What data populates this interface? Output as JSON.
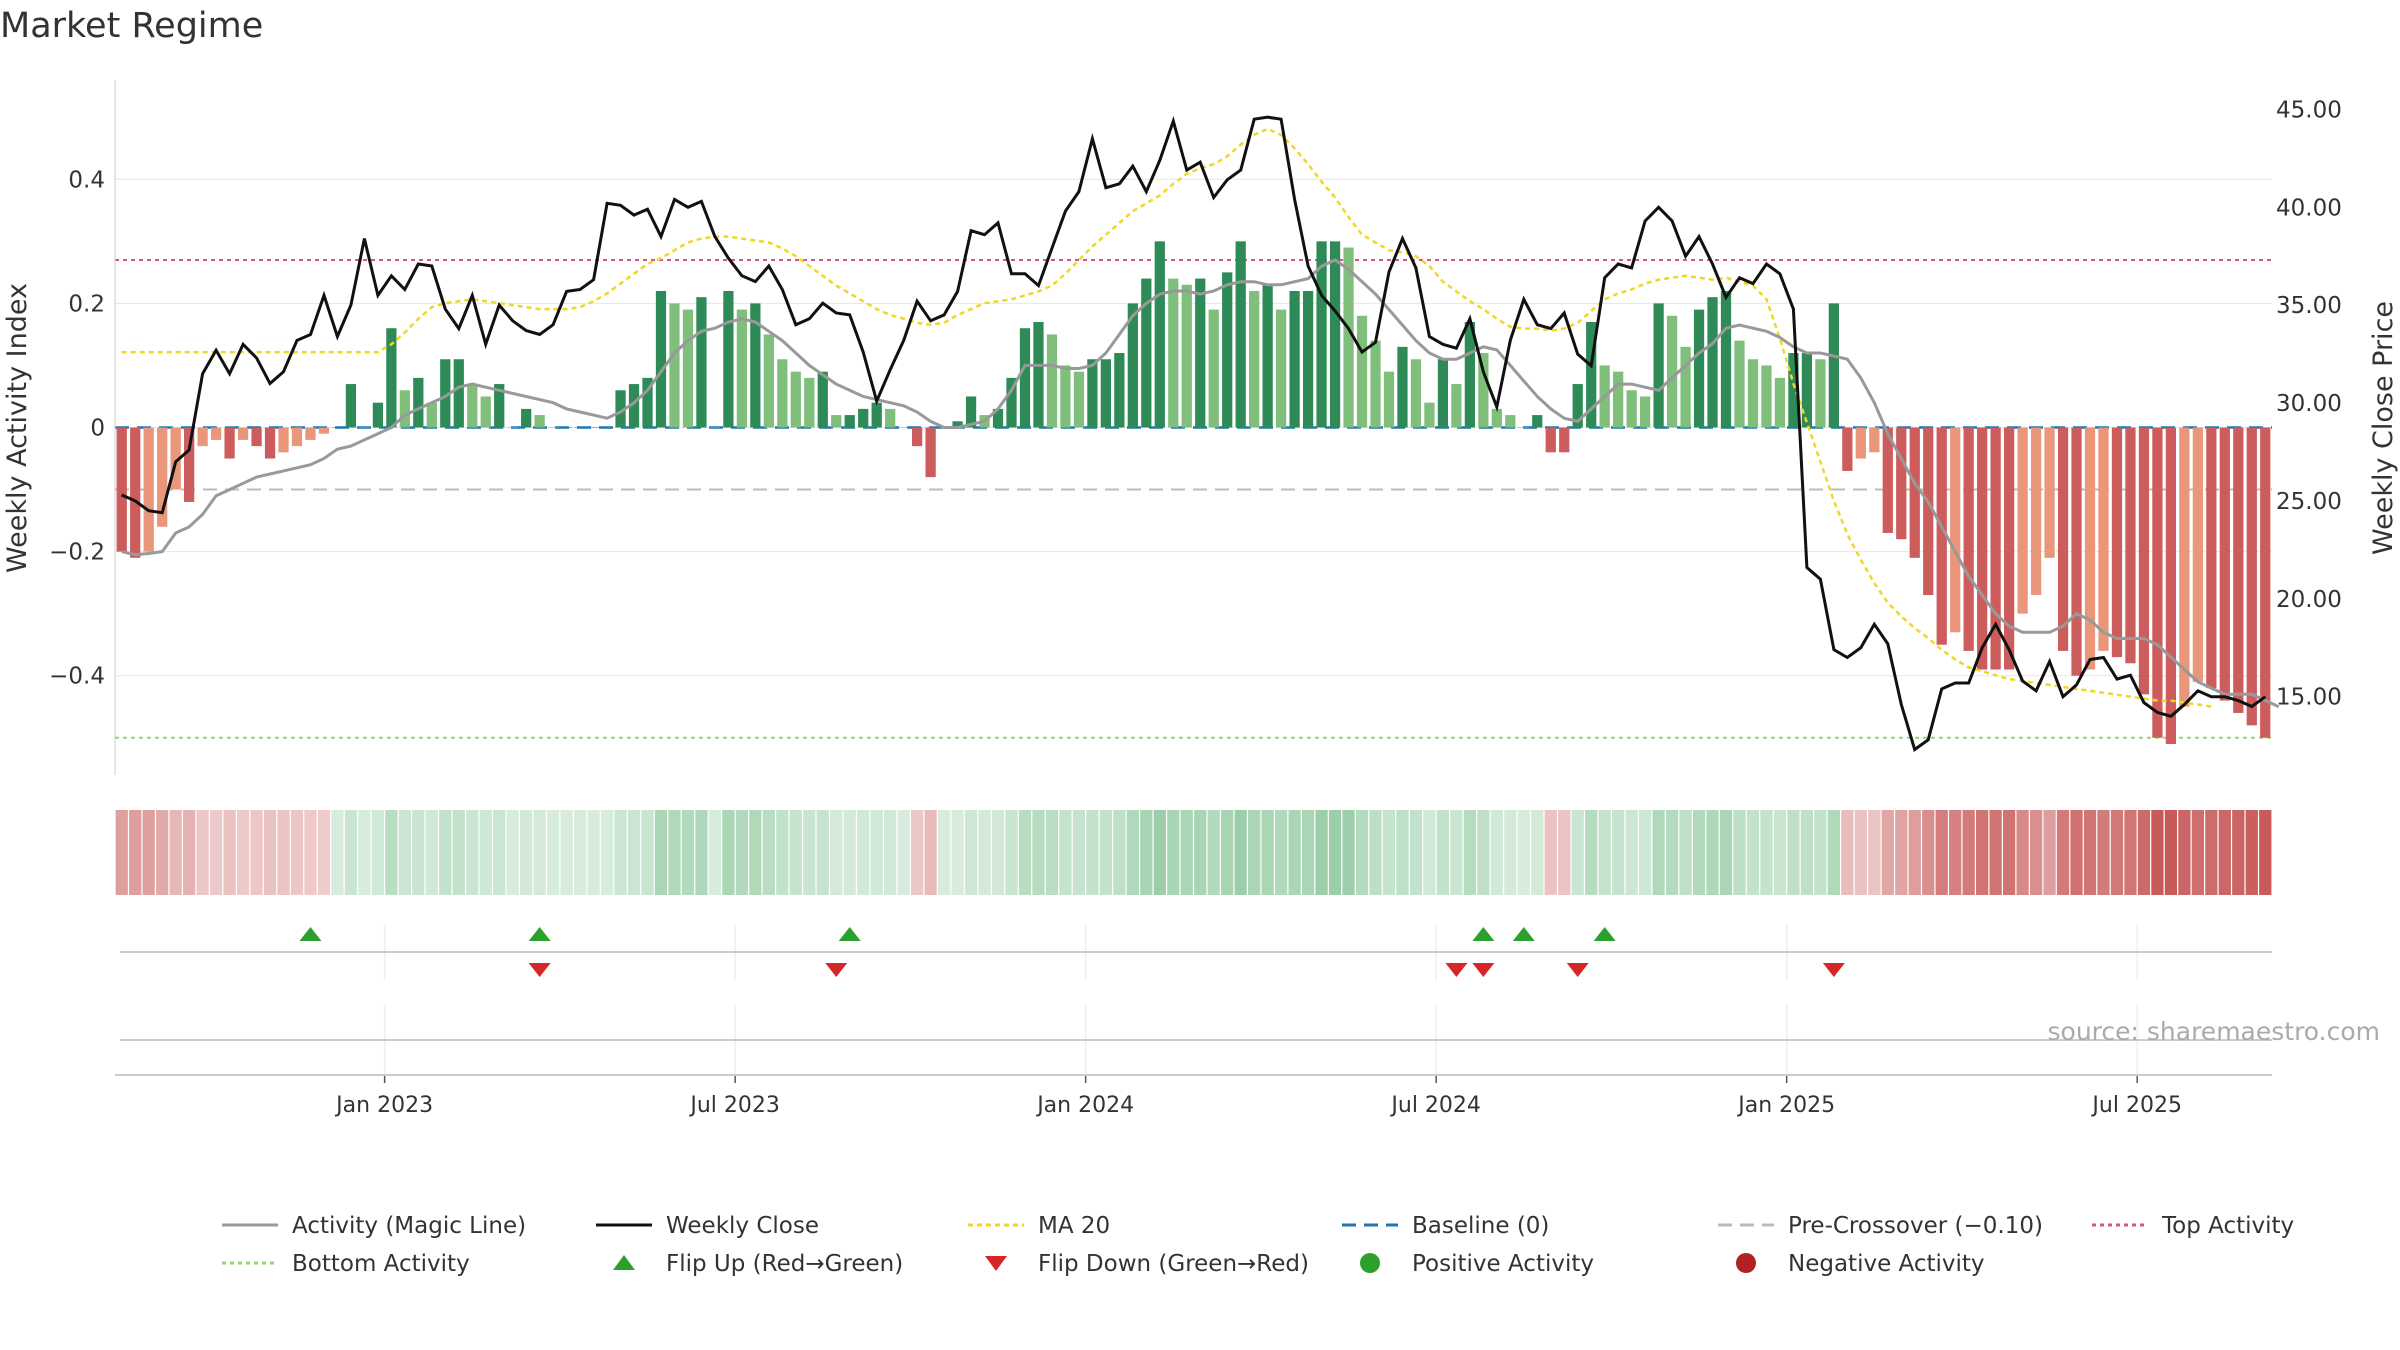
{
  "title": "Market Regime",
  "source": "source: sharemaestro.com",
  "colors": {
    "pos_dark": "#2e8b57",
    "pos_light": "#7fbf7b",
    "neg_dark": "#cd5c5c",
    "neg_light": "#e9967a",
    "activity": "#999999",
    "close": "#111111",
    "ma20": "#f0d722",
    "baseline": "#1f77b4",
    "precross": "#bbbbbb",
    "top": "#d6548a",
    "bottom": "#90d86c",
    "flip_up": "#2ca02c",
    "flip_down": "#d62728",
    "grid": "#e6e6e6"
  },
  "chart_data": {
    "type": "bar",
    "title": "Market Regime",
    "ylabel_left": "Weekly Activity Index",
    "ylabel_right": "Weekly Close Price",
    "left_ticks": [
      "0.4",
      "0.2",
      "0",
      "−0.2",
      "−0.4"
    ],
    "right_ticks": [
      "45.00",
      "40.00",
      "35.00",
      "30.00",
      "25.00",
      "20.00",
      "15.00"
    ],
    "x_ticks": [
      "Jan 2023",
      "Jul 2023",
      "Jan 2024",
      "Jul 2024",
      "Jan 2025",
      "Jul 2025"
    ],
    "ylim_left": [
      -0.56,
      0.56
    ],
    "ylim_right": [
      11.0,
      46.5
    ],
    "top_activity": 0.27,
    "bottom_activity": -0.5,
    "pre_crossover": -0.1,
    "activity_index": [
      -0.2,
      -0.21,
      -0.2,
      -0.16,
      -0.1,
      -0.12,
      -0.03,
      -0.02,
      -0.05,
      -0.02,
      -0.03,
      -0.05,
      -0.04,
      -0.03,
      -0.02,
      -0.01,
      0.0,
      0.07,
      0.0,
      0.04,
      0.16,
      0.06,
      0.08,
      0.04,
      0.11,
      0.11,
      0.07,
      0.05,
      0.07,
      0.0,
      0.03,
      0.02,
      0.0,
      0.0,
      0.0,
      0.0,
      0.0,
      0.06,
      0.07,
      0.08,
      0.22,
      0.2,
      0.19,
      0.21,
      0.0,
      0.22,
      0.19,
      0.2,
      0.15,
      0.11,
      0.09,
      0.08,
      0.09,
      0.02,
      0.02,
      0.03,
      0.04,
      0.03,
      0.0,
      -0.03,
      -0.08,
      0.0,
      0.01,
      0.05,
      0.02,
      0.03,
      0.08,
      0.16,
      0.17,
      0.15,
      0.1,
      0.09,
      0.11,
      0.11,
      0.12,
      0.2,
      0.24,
      0.3,
      0.24,
      0.23,
      0.24,
      0.19,
      0.25,
      0.3,
      0.22,
      0.23,
      0.19,
      0.22,
      0.22,
      0.3,
      0.3,
      0.29,
      0.18,
      0.14,
      0.09,
      0.13,
      0.11,
      0.04,
      0.11,
      0.07,
      0.17,
      0.12,
      0.03,
      0.02,
      0.0,
      0.02,
      -0.04,
      -0.04,
      0.07,
      0.17,
      0.1,
      0.09,
      0.06,
      0.05,
      0.2,
      0.18,
      0.13,
      0.19,
      0.21,
      0.22,
      0.14,
      0.11,
      0.1,
      0.08,
      0.12,
      0.12,
      0.11,
      0.2,
      -0.07,
      -0.05,
      -0.04,
      -0.17,
      -0.18,
      -0.21,
      -0.27,
      -0.35,
      -0.33,
      -0.36,
      -0.39,
      -0.39,
      -0.39,
      -0.3,
      -0.27,
      -0.21,
      -0.36,
      -0.4,
      -0.39,
      -0.36,
      -0.37,
      -0.38,
      -0.43,
      -0.5,
      -0.51,
      -0.45,
      -0.41,
      -0.42,
      -0.44,
      -0.46,
      -0.48,
      -0.5
    ],
    "magic_line": [
      -0.2,
      -0.205,
      -0.203,
      -0.2,
      -0.17,
      -0.16,
      -0.14,
      -0.11,
      -0.1,
      -0.09,
      -0.08,
      -0.075,
      -0.07,
      -0.065,
      -0.06,
      -0.05,
      -0.035,
      -0.03,
      -0.02,
      -0.01,
      0.0,
      0.02,
      0.03,
      0.04,
      0.05,
      0.065,
      0.07,
      0.065,
      0.06,
      0.055,
      0.05,
      0.045,
      0.04,
      0.03,
      0.025,
      0.02,
      0.015,
      0.025,
      0.04,
      0.06,
      0.09,
      0.12,
      0.14,
      0.155,
      0.16,
      0.17,
      0.175,
      0.17,
      0.155,
      0.14,
      0.12,
      0.1,
      0.085,
      0.07,
      0.06,
      0.05,
      0.045,
      0.04,
      0.035,
      0.025,
      0.01,
      0.0,
      0.0,
      0.005,
      0.01,
      0.03,
      0.06,
      0.1,
      0.1,
      0.1,
      0.095,
      0.095,
      0.1,
      0.12,
      0.15,
      0.18,
      0.2,
      0.215,
      0.22,
      0.22,
      0.215,
      0.22,
      0.23,
      0.235,
      0.235,
      0.23,
      0.23,
      0.235,
      0.24,
      0.26,
      0.27,
      0.255,
      0.235,
      0.215,
      0.19,
      0.165,
      0.14,
      0.12,
      0.11,
      0.11,
      0.12,
      0.13,
      0.125,
      0.1,
      0.075,
      0.05,
      0.03,
      0.015,
      0.01,
      0.03,
      0.05,
      0.07,
      0.07,
      0.065,
      0.06,
      0.08,
      0.1,
      0.12,
      0.135,
      0.16,
      0.165,
      0.16,
      0.155,
      0.145,
      0.13,
      0.12,
      0.12,
      0.115,
      0.11,
      0.08,
      0.04,
      -0.01,
      -0.05,
      -0.09,
      -0.12,
      -0.16,
      -0.2,
      -0.24,
      -0.27,
      -0.3,
      -0.32,
      -0.33,
      -0.33,
      -0.33,
      -0.32,
      -0.3,
      -0.31,
      -0.33,
      -0.34,
      -0.34,
      -0.34,
      -0.35,
      -0.37,
      -0.39,
      -0.41,
      -0.42,
      -0.43,
      -0.43,
      -0.43,
      -0.44,
      -0.45
    ],
    "weekly_close": [
      25.3,
      25.0,
      24.5,
      24.4,
      27.0,
      27.6,
      31.5,
      32.7,
      31.5,
      33.0,
      32.3,
      31.0,
      31.6,
      33.2,
      33.5,
      35.5,
      33.4,
      35.0,
      38.4,
      35.5,
      36.5,
      35.8,
      37.1,
      37.0,
      34.8,
      33.8,
      35.5,
      33.0,
      35.0,
      34.2,
      33.7,
      33.5,
      34.0,
      35.7,
      35.8,
      36.3,
      40.2,
      40.1,
      39.6,
      39.9,
      38.5,
      40.4,
      40.0,
      40.3,
      38.5,
      37.4,
      36.5,
      36.2,
      37.0,
      35.8,
      34.0,
      34.3,
      35.1,
      34.6,
      34.5,
      32.6,
      30.1,
      31.7,
      33.2,
      35.2,
      34.2,
      34.5,
      35.7,
      38.8,
      38.6,
      39.2,
      36.6,
      36.6,
      36.0,
      37.9,
      39.8,
      40.8,
      43.5,
      41.0,
      41.2,
      42.1,
      40.8,
      42.4,
      44.4,
      41.9,
      42.3,
      40.5,
      41.4,
      41.9,
      44.5,
      44.6,
      44.5,
      40.4,
      37.0,
      35.5,
      34.7,
      33.8,
      32.6,
      33.1,
      36.7,
      38.4,
      36.9,
      33.4,
      33.0,
      32.8,
      34.3,
      31.6,
      29.8,
      33.2,
      35.3,
      34.0,
      33.8,
      34.6,
      32.5,
      31.9,
      36.4,
      37.1,
      36.9,
      39.3,
      40.0,
      39.3,
      37.5,
      38.5,
      37.1,
      35.4,
      36.4,
      36.1,
      37.1,
      36.6,
      34.8,
      21.6,
      21.0,
      17.4,
      17.0,
      17.5,
      18.7,
      17.7,
      14.6,
      12.3,
      12.8,
      15.4,
      15.7,
      15.7,
      17.5,
      18.7,
      17.4,
      15.8,
      15.3,
      16.8,
      15.0,
      15.6,
      16.9,
      17.0,
      15.9,
      16.1,
      14.7,
      14.2,
      14.0,
      14.6,
      15.3,
      15.0,
      15.0,
      14.8,
      14.5,
      15.0
    ],
    "ma20": [
      32.6,
      32.6,
      32.6,
      32.6,
      32.6,
      32.6,
      32.6,
      32.6,
      32.6,
      32.6,
      32.6,
      32.6,
      32.6,
      32.6,
      32.6,
      32.6,
      32.6,
      32.6,
      32.6,
      32.6,
      33.0,
      33.6,
      34.3,
      34.9,
      35.1,
      35.2,
      35.3,
      35.2,
      35.1,
      35.0,
      34.9,
      34.8,
      34.8,
      34.8,
      34.9,
      35.2,
      35.6,
      36.1,
      36.6,
      37.1,
      37.4,
      37.8,
      38.2,
      38.4,
      38.5,
      38.5,
      38.4,
      38.3,
      38.2,
      37.9,
      37.5,
      37.0,
      36.5,
      36.0,
      35.6,
      35.2,
      34.8,
      34.5,
      34.3,
      34.1,
      34.0,
      34.1,
      34.5,
      34.8,
      35.1,
      35.2,
      35.3,
      35.5,
      35.7,
      36.0,
      36.6,
      37.3,
      38.0,
      38.6,
      39.2,
      39.8,
      40.2,
      40.6,
      41.2,
      41.7,
      42.0,
      42.2,
      42.6,
      43.2,
      43.7,
      44.0,
      43.7,
      43.0,
      42.2,
      41.3,
      40.5,
      39.5,
      38.6,
      38.2,
      37.8,
      37.7,
      37.5,
      37.0,
      36.2,
      35.7,
      35.2,
      34.8,
      34.3,
      33.9,
      33.8,
      33.8,
      33.7,
      33.8,
      34.1,
      34.7,
      35.3,
      35.6,
      35.8,
      36.1,
      36.3,
      36.4,
      36.5,
      36.4,
      36.3,
      36.4,
      36.2,
      36.0,
      35.3,
      33.3,
      31.0,
      29.0,
      27.0,
      25.0,
      23.3,
      22.0,
      20.8,
      19.8,
      19.1,
      18.5,
      18.0,
      17.4,
      16.9,
      16.5,
      16.3,
      16.1,
      15.9,
      15.8,
      15.7,
      15.6,
      15.5,
      15.4,
      15.3,
      15.2,
      15.1,
      15.0,
      14.9,
      14.8,
      14.8,
      14.7,
      14.6,
      14.5
    ],
    "regime_strip": [
      -0.2,
      -0.21,
      -0.2,
      -0.16,
      -0.1,
      -0.12,
      -0.03,
      -0.02,
      -0.05,
      -0.02,
      -0.03,
      -0.05,
      -0.04,
      -0.03,
      -0.02,
      -0.01,
      0.0,
      0.07,
      0.0,
      0.04,
      0.16,
      0.06,
      0.08,
      0.04,
      0.11,
      0.11,
      0.07,
      0.05,
      0.07,
      0.0,
      0.03,
      0.02,
      0.0,
      0.0,
      0.0,
      0.0,
      0.0,
      0.06,
      0.07,
      0.08,
      0.22,
      0.2,
      0.19,
      0.21,
      0.0,
      0.22,
      0.19,
      0.2,
      0.15,
      0.11,
      0.09,
      0.08,
      0.09,
      0.02,
      0.02,
      0.03,
      0.04,
      0.03,
      0.0,
      -0.03,
      -0.08,
      0.0,
      0.01,
      0.05,
      0.02,
      0.03,
      0.08,
      0.16,
      0.17,
      0.15,
      0.1,
      0.09,
      0.11,
      0.11,
      0.12,
      0.2,
      0.24,
      0.3,
      0.24,
      0.23,
      0.24,
      0.19,
      0.25,
      0.3,
      0.22,
      0.23,
      0.19,
      0.22,
      0.22,
      0.3,
      0.3,
      0.29,
      0.18,
      0.14,
      0.09,
      0.13,
      0.11,
      0.04,
      0.11,
      0.07,
      0.17,
      0.12,
      0.03,
      0.02,
      0.0,
      0.02,
      -0.04,
      -0.04,
      0.07,
      0.17,
      0.1,
      0.09,
      0.06,
      0.05,
      0.2,
      0.18,
      0.13,
      0.19,
      0.21,
      0.22,
      0.14,
      0.11,
      0.1,
      0.08,
      0.12,
      0.12,
      0.11,
      0.2,
      -0.07,
      -0.05,
      -0.04,
      -0.17,
      -0.18,
      -0.21,
      -0.27,
      -0.35,
      -0.33,
      -0.36,
      -0.39,
      -0.39,
      -0.39,
      -0.3,
      -0.27,
      -0.21,
      -0.36,
      -0.4,
      -0.39,
      -0.36,
      -0.37,
      -0.38,
      -0.43,
      -0.5,
      -0.51,
      -0.45,
      -0.41,
      -0.42,
      -0.44,
      -0.46,
      -0.48,
      -0.5
    ],
    "flip_up_weeks": [
      14,
      31,
      54,
      101,
      104,
      110
    ],
    "flip_down_weeks": [
      31,
      53,
      99,
      101,
      108,
      127
    ],
    "legend": [
      {
        "label": "Activity (Magic Line)",
        "kind": "line",
        "color": "#999999",
        "dash": ""
      },
      {
        "label": "Weekly Close",
        "kind": "line",
        "color": "#111111",
        "dash": ""
      },
      {
        "label": "MA 20",
        "kind": "line",
        "color": "#f0d722",
        "dash": "5,4"
      },
      {
        "label": "Baseline (0)",
        "kind": "line",
        "color": "#1f77b4",
        "dash": "14,8"
      },
      {
        "label": "Pre-Crossover (−0.10)",
        "kind": "line",
        "color": "#bbbbbb",
        "dash": "14,8"
      },
      {
        "label": "Top Activity",
        "kind": "line",
        "color": "#d6548a",
        "dash": "4,4"
      },
      {
        "label": "Bottom Activity",
        "kind": "line",
        "color": "#90d86c",
        "dash": "4,4"
      },
      {
        "label": "Flip Up (Red→Green)",
        "kind": "tri-up",
        "color": "#2ca02c",
        "dash": ""
      },
      {
        "label": "Flip Down (Green→Red)",
        "kind": "tri-down",
        "color": "#d62728",
        "dash": ""
      },
      {
        "label": "Positive Activity",
        "kind": "dot",
        "color": "#2ca02c",
        "dash": ""
      },
      {
        "label": "Negative Activity",
        "kind": "dot",
        "color": "#b22222",
        "dash": ""
      }
    ]
  }
}
